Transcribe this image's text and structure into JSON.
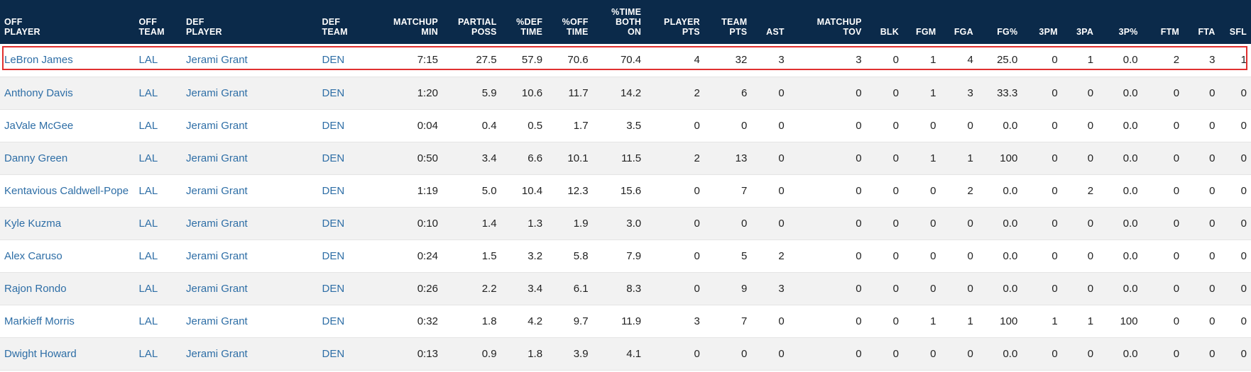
{
  "headers": [
    "OFF\nPLAYER",
    "OFF\nTEAM",
    "DEF\nPLAYER",
    "DEF\nTEAM",
    "MATCHUP\nMIN",
    "PARTIAL\nPOSS",
    "%DEF\nTIME",
    "%OFF\nTIME",
    "%TIME\nBOTH\nON",
    "PLAYER\nPTS",
    "TEAM\nPTS",
    "AST",
    "MATCHUP\nTOV",
    "BLK",
    "FGM",
    "FGA",
    "FG%",
    "3PM",
    "3PA",
    "3P%",
    "FTM",
    "FTA",
    "SFL"
  ],
  "rows": [
    [
      "LeBron James",
      "LAL",
      "Jerami Grant",
      "DEN",
      "7:15",
      "27.5",
      "57.9",
      "70.6",
      "70.4",
      "4",
      "32",
      "3",
      "3",
      "0",
      "1",
      "4",
      "25.0",
      "0",
      "1",
      "0.0",
      "2",
      "3",
      "1"
    ],
    [
      "Anthony Davis",
      "LAL",
      "Jerami Grant",
      "DEN",
      "1:20",
      "5.9",
      "10.6",
      "11.7",
      "14.2",
      "2",
      "6",
      "0",
      "0",
      "0",
      "1",
      "3",
      "33.3",
      "0",
      "0",
      "0.0",
      "0",
      "0",
      "0"
    ],
    [
      "JaVale McGee",
      "LAL",
      "Jerami Grant",
      "DEN",
      "0:04",
      "0.4",
      "0.5",
      "1.7",
      "3.5",
      "0",
      "0",
      "0",
      "0",
      "0",
      "0",
      "0",
      "0.0",
      "0",
      "0",
      "0.0",
      "0",
      "0",
      "0"
    ],
    [
      "Danny Green",
      "LAL",
      "Jerami Grant",
      "DEN",
      "0:50",
      "3.4",
      "6.6",
      "10.1",
      "11.5",
      "2",
      "13",
      "0",
      "0",
      "0",
      "1",
      "1",
      "100",
      "0",
      "0",
      "0.0",
      "0",
      "0",
      "0"
    ],
    [
      "Kentavious Caldwell-Pope",
      "LAL",
      "Jerami Grant",
      "DEN",
      "1:19",
      "5.0",
      "10.4",
      "12.3",
      "15.6",
      "0",
      "7",
      "0",
      "0",
      "0",
      "0",
      "2",
      "0.0",
      "0",
      "2",
      "0.0",
      "0",
      "0",
      "0"
    ],
    [
      "Kyle Kuzma",
      "LAL",
      "Jerami Grant",
      "DEN",
      "0:10",
      "1.4",
      "1.3",
      "1.9",
      "3.0",
      "0",
      "0",
      "0",
      "0",
      "0",
      "0",
      "0",
      "0.0",
      "0",
      "0",
      "0.0",
      "0",
      "0",
      "0"
    ],
    [
      "Alex Caruso",
      "LAL",
      "Jerami Grant",
      "DEN",
      "0:24",
      "1.5",
      "3.2",
      "5.8",
      "7.9",
      "0",
      "5",
      "2",
      "0",
      "0",
      "0",
      "0",
      "0.0",
      "0",
      "0",
      "0.0",
      "0",
      "0",
      "0"
    ],
    [
      "Rajon Rondo",
      "LAL",
      "Jerami Grant",
      "DEN",
      "0:26",
      "2.2",
      "3.4",
      "6.1",
      "8.3",
      "0",
      "9",
      "3",
      "0",
      "0",
      "0",
      "0",
      "0.0",
      "0",
      "0",
      "0.0",
      "0",
      "0",
      "0"
    ],
    [
      "Markieff Morris",
      "LAL",
      "Jerami Grant",
      "DEN",
      "0:32",
      "1.8",
      "4.2",
      "9.7",
      "11.9",
      "3",
      "7",
      "0",
      "0",
      "0",
      "1",
      "1",
      "100",
      "1",
      "1",
      "100",
      "0",
      "0",
      "0"
    ],
    [
      "Dwight Howard",
      "LAL",
      "Jerami Grant",
      "DEN",
      "0:13",
      "0.9",
      "1.8",
      "3.9",
      "4.1",
      "0",
      "0",
      "0",
      "0",
      "0",
      "0",
      "0",
      "0.0",
      "0",
      "0",
      "0.0",
      "0",
      "0",
      "0"
    ]
  ],
  "colors": {
    "header_bg": "#0b2a4a",
    "link": "#2e6ea6",
    "highlight": "#e03030"
  }
}
